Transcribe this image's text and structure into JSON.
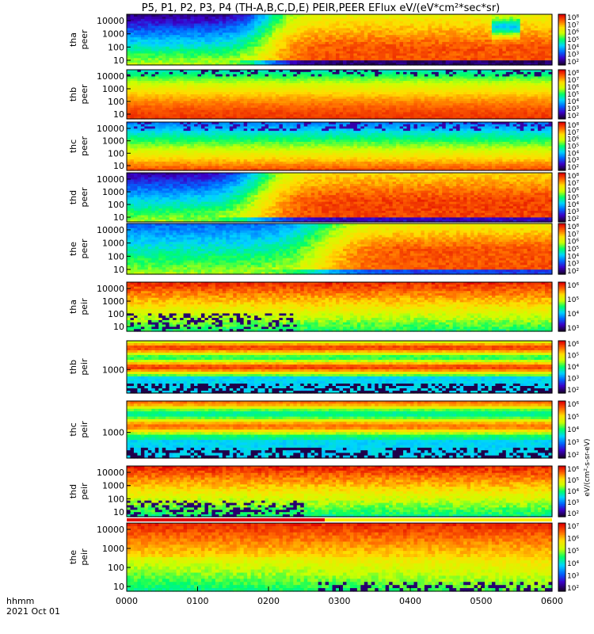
{
  "chart_data": {
    "type": "heatmap",
    "title": "P5, P1, P2, P3, P4 (TH-A,B,C,D,E) PEIR,PEER EFlux eV/(eV*cm²*sec*sr)",
    "x_ticks": [
      "0000",
      "0100",
      "0200",
      "0300",
      "0400",
      "0500",
      "0600"
    ],
    "x_unit_label": "hhmm",
    "date_label": "2021 Oct 01",
    "colorbar_unit": "eV/(cm²-s-sr-eV)",
    "colormap": [
      "#1a0033",
      "#3b00c8",
      "#0066ff",
      "#00d4ff",
      "#00ff66",
      "#ccff00",
      "#ffdd00",
      "#ff6600",
      "#e00000"
    ],
    "panels": [
      {
        "probe": "tha",
        "species": "peer",
        "yticks": [
          "10",
          "100",
          "1000",
          "10000"
        ],
        "cbar_ticks": [
          "10²",
          "10³",
          "10⁴",
          "10⁵",
          "10⁶",
          "10⁷",
          "10⁸"
        ],
        "pattern": "peer_a"
      },
      {
        "probe": "thb",
        "species": "peer",
        "yticks": [
          "10",
          "100",
          "1000",
          "10000"
        ],
        "cbar_ticks": [
          "10²",
          "10³",
          "10⁴",
          "10⁵",
          "10⁶",
          "10⁷",
          "10⁸"
        ],
        "pattern": "peer_b"
      },
      {
        "probe": "thc",
        "species": "peer",
        "yticks": [
          "10",
          "100",
          "1000",
          "10000"
        ],
        "cbar_ticks": [
          "10²",
          "10³",
          "10⁴",
          "10⁵",
          "10⁶",
          "10⁷",
          "10⁸"
        ],
        "pattern": "peer_c"
      },
      {
        "probe": "thd",
        "species": "peer",
        "yticks": [
          "10",
          "100",
          "1000",
          "10000"
        ],
        "cbar_ticks": [
          "10²",
          "10³",
          "10⁴",
          "10⁵",
          "10⁶",
          "10⁷",
          "10⁸"
        ],
        "pattern": "peer_d"
      },
      {
        "probe": "the",
        "species": "peer",
        "yticks": [
          "10",
          "100",
          "1000",
          "10000"
        ],
        "cbar_ticks": [
          "10²",
          "10³",
          "10⁴",
          "10⁵",
          "10⁶",
          "10⁷",
          "10⁸"
        ],
        "pattern": "peer_e"
      },
      {
        "probe": "tha",
        "species": "peir",
        "yticks": [
          "10",
          "100",
          "1000",
          "10000"
        ],
        "cbar_ticks": [
          "10³",
          "10⁴",
          "10⁵",
          "10⁶"
        ],
        "pattern": "peir_a"
      },
      {
        "probe": "thb",
        "species": "peir",
        "yticks": [
          "1000"
        ],
        "cbar_ticks": [
          "10²",
          "10³",
          "10⁴",
          "10⁵",
          "10⁶"
        ],
        "pattern": "peir_b"
      },
      {
        "probe": "thc",
        "species": "peir",
        "yticks": [
          "1000"
        ],
        "cbar_ticks": [
          "10²",
          "10³",
          "10⁴",
          "10⁵",
          "10⁶"
        ],
        "pattern": "peir_c"
      },
      {
        "probe": "thd",
        "species": "peir",
        "yticks": [
          "10",
          "100",
          "1000",
          "10000"
        ],
        "cbar_ticks": [
          "10²",
          "10³",
          "10⁴",
          "10⁵",
          "10⁶"
        ],
        "pattern": "peir_d"
      },
      {
        "probe": "the",
        "species": "peir",
        "yticks": [
          "10",
          "100",
          "1000",
          "10000"
        ],
        "cbar_ticks": [
          "10²",
          "10³",
          "10⁴",
          "10⁵",
          "10⁶",
          "10⁷"
        ],
        "pattern": "peir_e"
      }
    ]
  }
}
